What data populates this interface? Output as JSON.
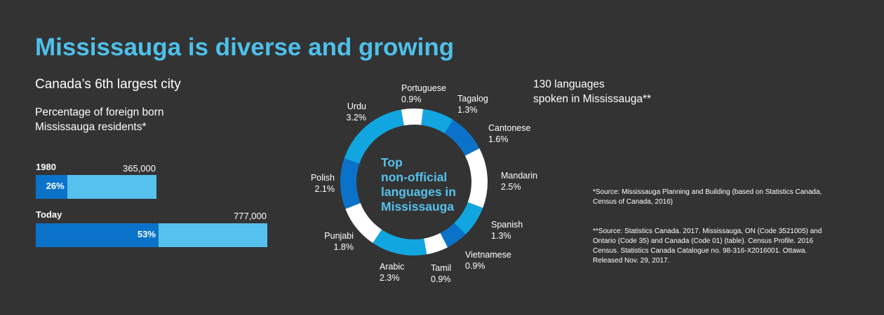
{
  "title": "Mississauga is diverse and growing",
  "subtitle": "Canada’s 6th largest city",
  "foreign_born_label": [
    "Percentage of foreign born",
    "Mississauga residents*"
  ],
  "colors": {
    "background": "#333333",
    "title": "#4ec0ea",
    "bar_dark": "#0a73c9",
    "bar_light": "#56c1ec",
    "donut_light": "#11a6e0",
    "donut_dark": "#0a73c9",
    "donut_white": "#ffffff"
  },
  "donut_center": [
    "Top",
    "non-official",
    "languages in",
    "Mississauga"
  ],
  "languages_count": [
    "130 languages",
    "spoken in Mississauga**"
  ],
  "sources": {
    "first": "*Source: Mississauga Planning and Building (based on Statistics Canada, Census of Canada, 2016)",
    "second": "**Source: Statistics Canada. 2017. Mississauga, ON (Code 3521005) and Ontario (Code 35) and Canada (Code 01) (table). Census Profile. 2016 Census. Statistics Canada Catalogue no. 98-316-X2016001. Ottawa. Released Nov. 29, 2017."
  },
  "chart_data": [
    {
      "type": "bar",
      "orientation": "horizontal",
      "title": "Percentage of foreign born Mississauga residents*",
      "categories": [
        "1980",
        "Today"
      ],
      "series": [
        {
          "values": [
            26,
            53
          ],
          "labels": [
            "26%",
            "53%"
          ]
        }
      ],
      "totals": [
        365000,
        777000
      ],
      "total_labels": [
        "365,000",
        "777,000"
      ]
    },
    {
      "type": "pie",
      "donut": true,
      "title": "Top non-official languages in Mississauga",
      "categories": [
        "Portuguese",
        "Tagalog",
        "Cantonese",
        "Mandarin",
        "Spanish",
        "Vietnamese",
        "Tamil",
        "Arabic",
        "Punjabi",
        "Polish",
        "Urdu"
      ],
      "values": [
        0.9,
        1.3,
        1.6,
        2.5,
        1.3,
        0.9,
        0.9,
        2.3,
        1.8,
        2.1,
        3.2
      ],
      "value_labels": [
        "0.9%",
        "1.3%",
        "1.6%",
        "2.5%",
        "1.3%",
        "0.9%",
        "0.9%",
        "2.3%",
        "1.8%",
        "2.1%",
        "3.2%"
      ],
      "slice_colors": [
        "#ffffff",
        "#11a6e0",
        "#0a73c9",
        "#ffffff",
        "#11a6e0",
        "#0a73c9",
        "#ffffff",
        "#11a6e0",
        "#ffffff",
        "#0a73c9",
        "#11a6e0"
      ]
    }
  ]
}
